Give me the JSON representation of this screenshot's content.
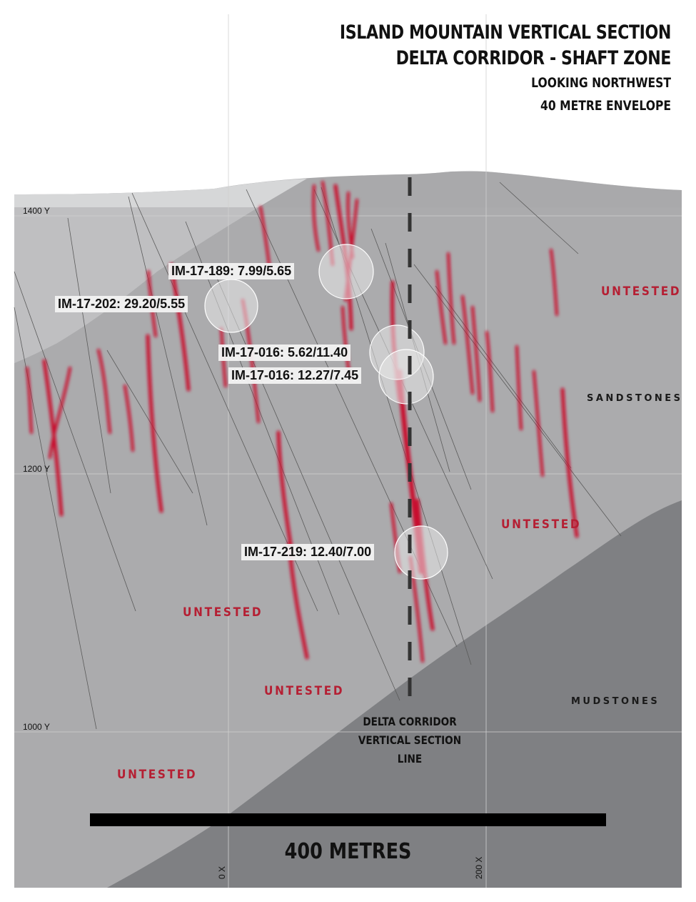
{
  "title": {
    "line1": "ISLAND MOUNTAIN VERTICAL SECTION",
    "line2": "DELTA CORRIDOR - SHAFT ZONE",
    "line3": "LOOKING NORTHWEST",
    "line4": "40 METRE ENVELOPE"
  },
  "intercepts": [
    {
      "hole": "IM-17-189",
      "text": "IM-17-189: 7.99/5.65"
    },
    {
      "hole": "IM-17-202",
      "text": "IM-17-202: 29.20/5.55"
    },
    {
      "hole": "IM-17-016",
      "text": "IM-17-016: 5.62/11.40"
    },
    {
      "hole": "IM-17-016",
      "text": "IM-17-016: 12.27/7.45"
    },
    {
      "hole": "IM-17-219",
      "text": "IM-17-219: 12.40/7.00"
    }
  ],
  "zones": {
    "untested": "UNTESTED",
    "sandstones": "SANDSTONES",
    "mudstones": "MUDSTONES"
  },
  "elevation_labels": [
    "1400 Y",
    "1200 Y",
    "1000 Y"
  ],
  "easting_labels": [
    "0 X",
    "200 X"
  ],
  "section_line": {
    "line1": "DELTA CORRIDOR",
    "line2": "VERTICAL SECTION LINE"
  },
  "scale_bar": {
    "label": "400 METRES",
    "length_m": 400
  },
  "colors": {
    "vein": "#c8102e",
    "untested_text": "#b51f33",
    "sandstone": "#ababad",
    "mudstone": "#7f8083",
    "upper_unit": "#d6d7d8",
    "surface_top": "#cfd0d1"
  }
}
